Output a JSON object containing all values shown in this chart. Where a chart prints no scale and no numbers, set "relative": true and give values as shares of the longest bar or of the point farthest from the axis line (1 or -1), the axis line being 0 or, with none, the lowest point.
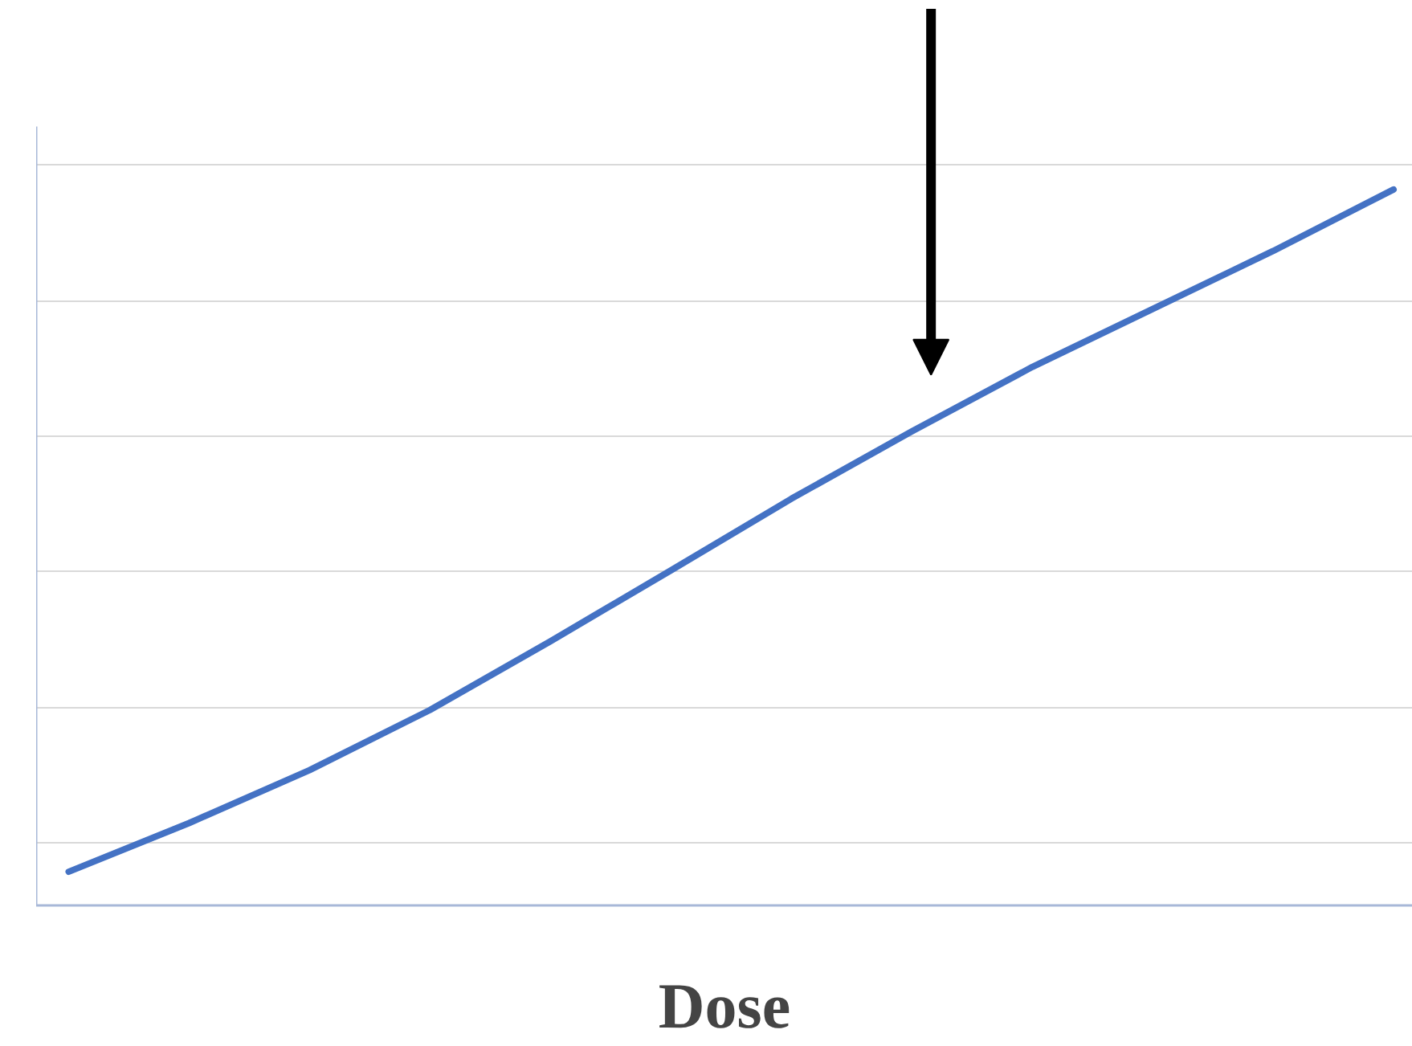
{
  "chart_data": {
    "type": "line",
    "xlabel": "Dose",
    "relative": true,
    "grid": "y",
    "categories": [
      null,
      null,
      null,
      null,
      null,
      null,
      null,
      null,
      null,
      null,
      null,
      null
    ],
    "series": [
      {
        "color": "#4472c4",
        "values": [
          0.047,
          0.115,
          0.189,
          0.273,
          0.369,
          0.468,
          0.568,
          0.662,
          0.752,
          0.833,
          0.914,
          1.0
        ]
      }
    ]
  }
}
